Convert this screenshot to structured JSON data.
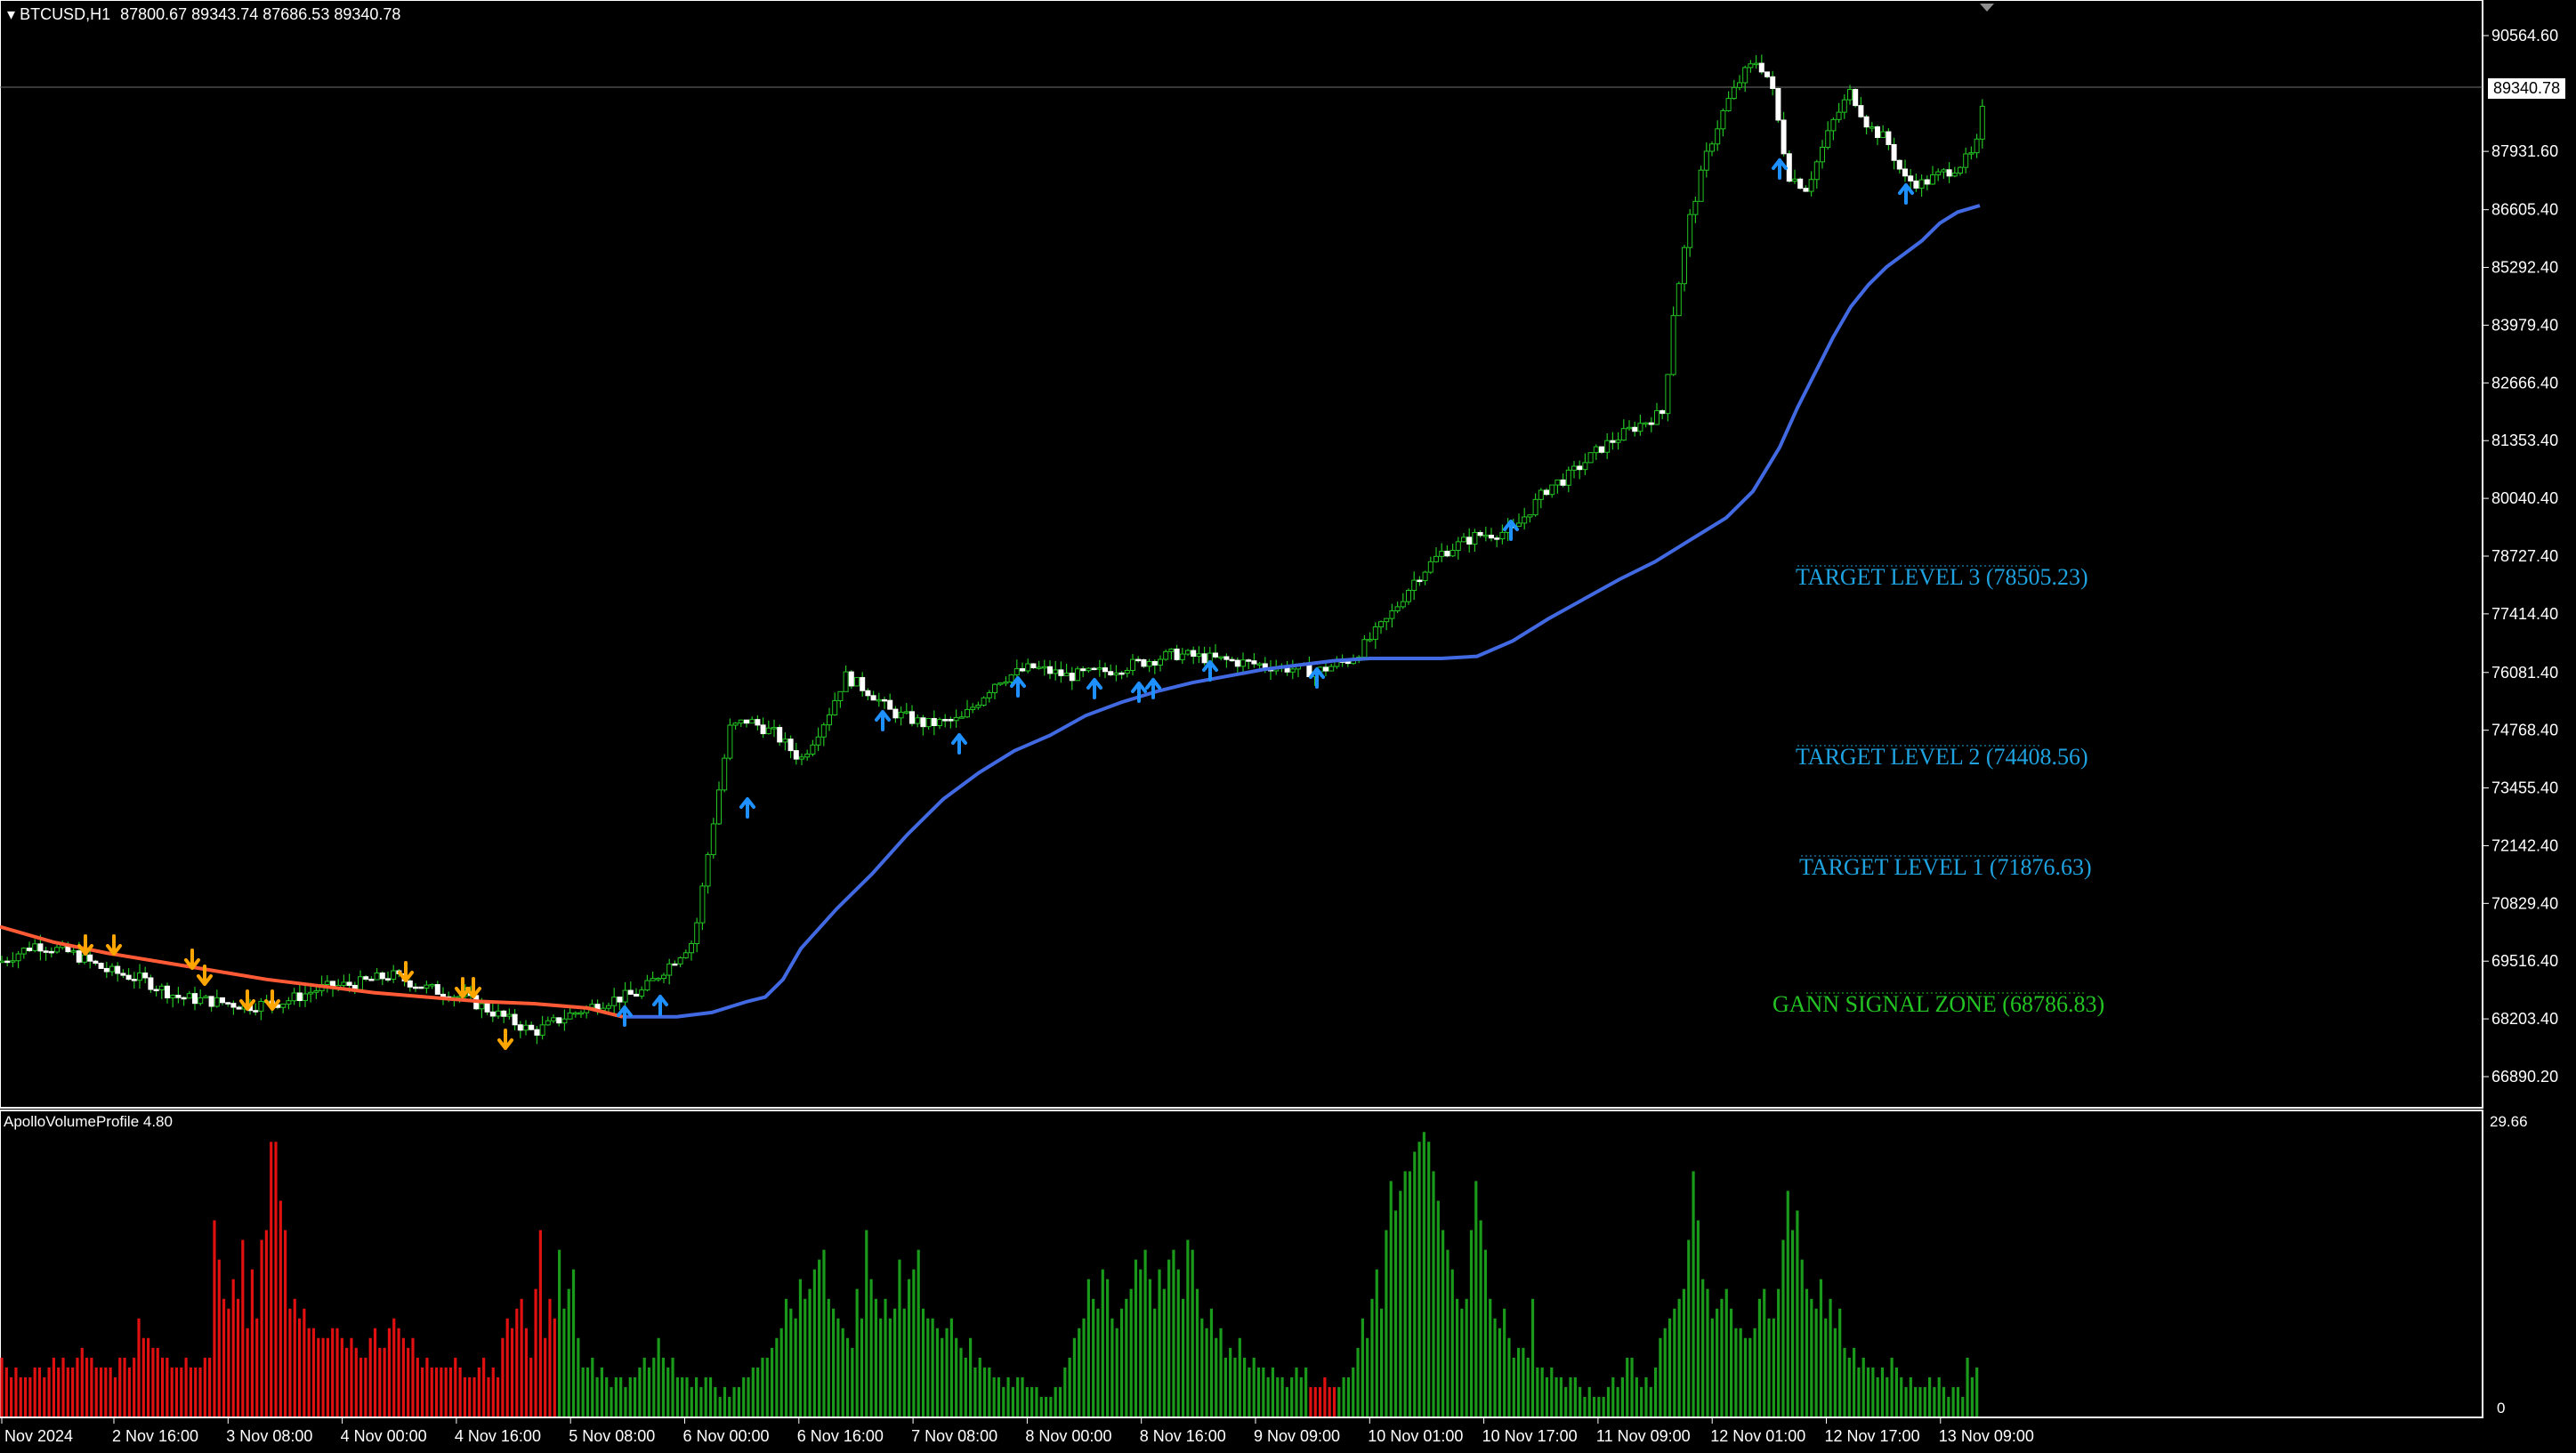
{
  "header": {
    "symbol": "BTCUSD,H1",
    "ohlc": "87800.67 89343.74 87686.53 89340.78"
  },
  "current_price": "89340.78",
  "price_axis": [
    "90564.60",
    "87931.60",
    "86605.40",
    "85292.40",
    "83979.40",
    "82666.40",
    "81353.40",
    "80040.40",
    "78727.40",
    "77414.40",
    "76081.40",
    "74768.40",
    "73455.40",
    "72142.40",
    "70829.40",
    "69516.40",
    "68203.40",
    "66890.20"
  ],
  "time_axis": [
    "2 Nov 2024",
    "2 Nov 16:00",
    "3 Nov 08:00",
    "4 Nov 00:00",
    "4 Nov 16:00",
    "5 Nov 08:00",
    "6 Nov 00:00",
    "6 Nov 16:00",
    "7 Nov 08:00",
    "8 Nov 00:00",
    "8 Nov 16:00",
    "9 Nov 09:00",
    "10 Nov 01:00",
    "10 Nov 17:00",
    "11 Nov 09:00",
    "12 Nov 01:00",
    "12 Nov 17:00",
    "13 Nov 09:00"
  ],
  "levels": [
    {
      "label": "TARGET LEVEL 3 (78505.23)",
      "color": "#1fa3e0"
    },
    {
      "label": "TARGET LEVEL 2 (74408.56)",
      "color": "#1fa3e0"
    },
    {
      "label": "TARGET LEVEL 1 (71876.63)",
      "color": "#1fa3e0"
    },
    {
      "label": "GANN SIGNAL ZONE (68786.83)",
      "color": "#22c322"
    }
  ],
  "indicator": {
    "name": "ApolloVolumeProfile 4.80",
    "max_label": "29.66",
    "min_label": "0"
  },
  "colors": {
    "bull": "#22c322",
    "ma_blue": "#4169e1",
    "ma_red": "#ff5a36",
    "arrow_up": "#1e90ff",
    "arrow_down": "#ffa500",
    "vol_red": "#e01010",
    "vol_green": "#1a9a1a"
  },
  "price_path": [
    [
      0,
      69500
    ],
    [
      40,
      69900
    ],
    [
      80,
      69700
    ],
    [
      120,
      69300
    ],
    [
      160,
      69100
    ],
    [
      200,
      68700
    ],
    [
      240,
      68600
    ],
    [
      280,
      68500
    ],
    [
      320,
      68600
    ],
    [
      360,
      68900
    ],
    [
      400,
      69000
    ],
    [
      440,
      69200
    ],
    [
      480,
      68900
    ],
    [
      520,
      68700
    ],
    [
      560,
      68300
    ],
    [
      600,
      67900
    ],
    [
      640,
      68300
    ],
    [
      680,
      68600
    ],
    [
      720,
      68800
    ],
    [
      750,
      69400
    ],
    [
      780,
      70000
    ],
    [
      800,
      72500
    ],
    [
      820,
      74800
    ],
    [
      840,
      75000
    ],
    [
      870,
      74700
    ],
    [
      900,
      74100
    ],
    [
      930,
      75100
    ],
    [
      950,
      76000
    ],
    [
      980,
      75600
    ],
    [
      1000,
      75200
    ],
    [
      1040,
      74900
    ],
    [
      1080,
      75000
    ],
    [
      1120,
      75900
    ],
    [
      1160,
      76200
    ],
    [
      1200,
      76000
    ],
    [
      1240,
      76100
    ],
    [
      1280,
      76300
    ],
    [
      1320,
      76500
    ],
    [
      1360,
      76400
    ],
    [
      1400,
      76300
    ],
    [
      1440,
      76200
    ],
    [
      1480,
      76100
    ],
    [
      1520,
      76400
    ],
    [
      1560,
      77300
    ],
    [
      1590,
      78200
    ],
    [
      1620,
      78800
    ],
    [
      1660,
      79200
    ],
    [
      1700,
      79300
    ],
    [
      1740,
      80300
    ],
    [
      1760,
      80500
    ],
    [
      1800,
      81200
    ],
    [
      1840,
      81700
    ],
    [
      1870,
      82000
    ],
    [
      1880,
      84200
    ],
    [
      1900,
      86500
    ],
    [
      1920,
      88000
    ],
    [
      1940,
      89000
    ],
    [
      1960,
      89700
    ],
    [
      1975,
      90000
    ],
    [
      1990,
      89500
    ],
    [
      2010,
      87400
    ],
    [
      2030,
      87100
    ],
    [
      2060,
      88600
    ],
    [
      2080,
      89300
    ],
    [
      2100,
      88500
    ],
    [
      2120,
      88200
    ],
    [
      2140,
      87300
    ],
    [
      2160,
      87200
    ],
    [
      2180,
      87400
    ],
    [
      2200,
      87600
    ],
    [
      2220,
      87900
    ],
    [
      2232,
      89340
    ]
  ],
  "volume_profile": [
    6,
    5,
    4,
    5,
    4,
    4,
    4,
    5,
    5,
    4,
    5,
    6,
    5,
    6,
    5,
    5,
    6,
    7,
    6,
    6,
    5,
    5,
    5,
    5,
    4,
    6,
    6,
    5,
    6,
    10,
    8,
    8,
    7,
    7,
    6,
    6,
    5,
    5,
    5,
    6,
    5,
    5,
    5,
    6,
    6,
    20,
    16,
    12,
    11,
    14,
    12,
    18,
    9,
    15,
    10,
    18,
    19,
    28,
    28,
    22,
    19,
    11,
    12,
    10,
    11,
    9,
    9,
    8,
    8,
    8,
    9,
    9,
    8,
    7,
    8,
    7,
    6,
    6,
    8,
    9,
    7,
    7,
    9,
    10,
    9,
    8,
    7,
    8,
    6,
    5,
    6,
    5,
    5,
    5,
    5,
    5,
    6,
    5,
    4,
    4,
    4,
    5,
    6,
    4,
    5,
    4,
    8,
    10,
    9,
    11,
    12,
    9,
    6,
    13,
    19,
    8,
    12,
    10,
    17,
    11,
    13,
    15,
    8,
    5,
    5,
    6,
    4,
    5,
    4,
    3,
    4,
    4,
    3,
    4,
    4,
    5,
    6,
    5,
    6,
    8,
    6,
    5,
    6,
    4,
    4,
    4,
    3,
    4,
    3,
    4,
    4,
    3,
    2,
    3,
    2,
    3,
    3,
    4,
    4,
    5,
    5,
    6,
    6,
    7,
    8,
    9,
    12,
    11,
    10,
    14,
    12,
    13,
    15,
    16,
    17,
    12,
    11,
    10,
    9,
    8,
    7,
    13,
    10,
    19,
    14,
    12,
    10,
    12,
    10,
    11,
    16,
    11,
    14,
    15,
    17,
    11,
    10,
    10,
    9,
    8,
    9,
    10,
    8,
    7,
    6,
    8,
    5,
    6,
    5,
    5,
    4,
    4,
    3,
    4,
    3,
    4,
    4,
    3,
    3,
    3,
    2,
    2,
    2,
    3,
    3,
    5,
    6,
    8,
    9,
    10,
    14,
    12,
    11,
    15,
    14,
    10,
    9,
    11,
    12,
    13,
    16,
    15,
    17,
    14,
    11,
    15,
    13,
    16,
    17,
    15,
    12,
    18,
    17,
    13,
    10,
    9,
    11,
    8,
    9,
    6,
    7,
    6,
    8,
    6,
    5,
    6,
    5,
    5,
    4,
    5,
    4,
    4,
    3,
    4,
    5,
    4,
    5,
    3,
    3,
    3,
    4,
    3,
    3,
    3,
    4,
    4,
    5,
    7,
    10,
    8,
    12,
    15,
    11,
    19,
    24,
    21,
    23,
    25,
    25,
    27,
    28,
    29,
    28,
    25,
    22,
    19,
    17,
    15,
    12,
    11,
    12,
    19,
    24,
    20,
    17,
    12,
    10,
    9,
    11,
    8,
    6,
    7,
    7,
    6,
    12,
    5,
    5,
    4,
    5,
    4,
    4,
    3,
    4,
    4,
    3,
    2,
    3,
    2,
    2,
    2,
    3,
    4,
    3,
    4,
    6,
    6,
    4,
    3,
    4,
    3,
    5,
    8,
    9,
    10,
    11,
    12,
    13,
    18,
    25,
    20,
    14,
    13,
    10,
    11,
    12,
    13,
    11,
    9,
    9,
    8,
    8,
    9,
    12,
    13,
    10,
    10,
    13,
    18,
    23,
    19,
    21,
    16,
    13,
    12,
    11,
    14,
    10,
    12,
    9,
    11,
    7,
    6,
    7,
    5,
    6,
    5,
    5,
    4,
    5,
    4,
    6,
    5,
    4,
    3,
    4,
    3,
    3,
    3,
    4,
    3,
    4,
    3,
    2,
    3,
    3,
    2,
    6,
    4,
    5
  ]
}
